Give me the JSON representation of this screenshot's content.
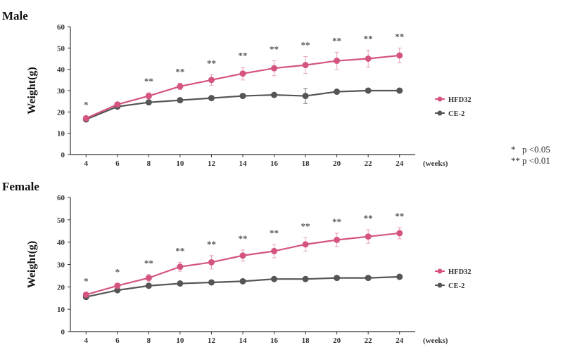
{
  "chart_data": [
    {
      "type": "line",
      "title": "Male",
      "xlabel": "",
      "x_unit": "(weeks)",
      "ylabel": "Weight(g)",
      "x": [
        4,
        6,
        8,
        10,
        12,
        14,
        16,
        18,
        20,
        22,
        24
      ],
      "xlim": [
        3,
        25
      ],
      "ylim": [
        0,
        60
      ],
      "yticks": [
        0,
        10,
        20,
        30,
        40,
        50,
        60
      ],
      "grid": false,
      "legend_position": "right",
      "series": [
        {
          "name": "HFD32",
          "color": "#d4547e",
          "values": [
            17.0,
            23.5,
            27.5,
            32.0,
            35.0,
            38.0,
            40.5,
            42.0,
            44.0,
            45.0,
            46.5
          ],
          "errors": [
            1.0,
            1.0,
            1.5,
            1.5,
            2.5,
            3.0,
            3.5,
            4.0,
            4.0,
            4.0,
            3.5
          ]
        },
        {
          "name": "CE-2",
          "color": "#555555",
          "values": [
            16.5,
            22.5,
            24.5,
            25.5,
            26.5,
            27.5,
            28.0,
            27.5,
            29.5,
            30.0,
            30.0
          ],
          "errors": [
            0.8,
            0.8,
            0.8,
            0.8,
            0.8,
            0.8,
            0.8,
            3.5,
            1.0,
            1.0,
            1.0
          ]
        }
      ],
      "significance": [
        "*",
        "",
        "**",
        "**",
        "**",
        "**",
        "**",
        "**",
        "**",
        "**",
        "**"
      ]
    },
    {
      "type": "line",
      "title": "Female",
      "xlabel": "",
      "x_unit": "(weeks)",
      "ylabel": "Weight(g)",
      "x": [
        4,
        6,
        8,
        10,
        12,
        14,
        16,
        18,
        20,
        22,
        24
      ],
      "xlim": [
        3,
        25
      ],
      "ylim": [
        0,
        60
      ],
      "yticks": [
        0,
        10,
        20,
        30,
        40,
        50,
        60
      ],
      "grid": false,
      "legend_position": "right",
      "series": [
        {
          "name": "HFD32",
          "color": "#d4547e",
          "values": [
            16.5,
            20.5,
            24.0,
            29.0,
            31.0,
            34.0,
            36.0,
            39.0,
            41.0,
            42.5,
            44.0
          ],
          "errors": [
            1.0,
            1.0,
            1.5,
            2.0,
            3.0,
            2.5,
            3.0,
            3.0,
            3.0,
            3.0,
            2.5
          ]
        },
        {
          "name": "CE-2",
          "color": "#555555",
          "values": [
            15.5,
            18.5,
            20.5,
            21.5,
            22.0,
            22.5,
            23.5,
            23.5,
            24.0,
            24.0,
            24.5
          ],
          "errors": [
            0.8,
            0.8,
            0.8,
            0.8,
            0.8,
            0.8,
            0.8,
            0.8,
            0.8,
            0.8,
            0.8
          ]
        }
      ],
      "significance": [
        "*",
        "*",
        "**",
        "**",
        "**",
        "**",
        "**",
        "**",
        "**",
        "**",
        "**"
      ]
    }
  ],
  "significance_key": [
    {
      "symbol": "*",
      "text": "p <0.05"
    },
    {
      "symbol": "**",
      "text": "p <0.01"
    }
  ]
}
